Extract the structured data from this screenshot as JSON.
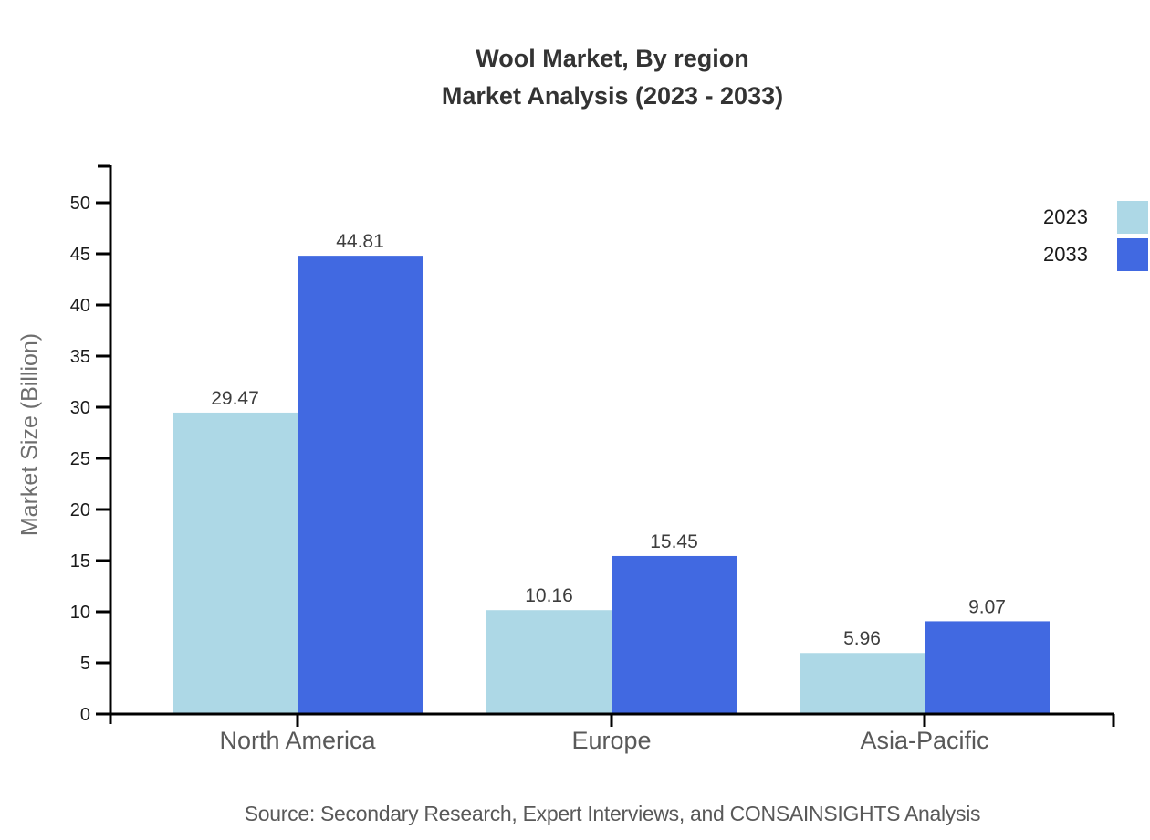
{
  "title": {
    "line1": "Wool Market, By region",
    "line2": "Market Analysis (2023 - 2033)"
  },
  "y_axis_label": "Market Size (Billion)",
  "source": "Source: Secondary Research, Expert Interviews, and CONSAINSIGHTS Analysis",
  "colors": {
    "bar_2023": "#ADD8E6",
    "bar_2033": "#4169E1",
    "axis": "#000000",
    "title_text": "#333333",
    "tick_label": "#1a1a1a",
    "value_label": "#3d3d3d",
    "category_label": "#595959",
    "ylabel_text": "#6e6e6e",
    "source_text": "#595959",
    "legend_text": "#1a1a1a"
  },
  "chart_data": {
    "type": "bar",
    "title": "Wool Market, By region — Market Analysis (2023 - 2033)",
    "categories": [
      "North America",
      "Europe",
      "Asia-Pacific"
    ],
    "series": [
      {
        "name": "2023",
        "color": "#ADD8E6",
        "values": [
          29.47,
          10.16,
          5.96
        ]
      },
      {
        "name": "2033",
        "color": "#4169E1",
        "values": [
          44.81,
          15.45,
          9.07
        ]
      }
    ],
    "xlabel": "",
    "ylabel": "Market Size (Billion)",
    "ylim": [
      0,
      50
    ],
    "ytick_step": 5,
    "yticks": [
      0,
      5,
      10,
      15,
      20,
      25,
      30,
      35,
      40,
      45,
      50
    ],
    "grid": false,
    "legend_position": "top-right",
    "value_labels": true
  }
}
